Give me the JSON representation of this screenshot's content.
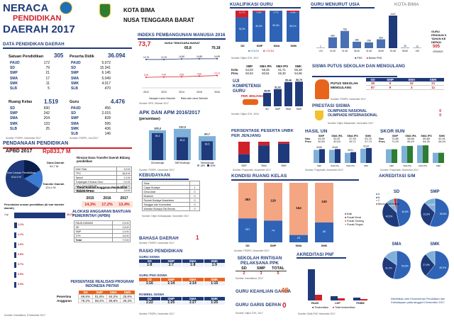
{
  "header": {
    "title1": "NERACA",
    "title2": "PENDIDIKAN",
    "title3": "DAERAH 2017",
    "region1": "KOTA BIMA",
    "region2": "NUSA TENGGARA BARAT"
  },
  "data_pendidikan": {
    "title": "DATA PENDIDIKAN DAERAH",
    "satuan": {
      "label": "Satuan Pendidikan",
      "total": "305",
      "rows": [
        [
          "PAUD",
          "172"
        ],
        [
          "SD",
          "79"
        ],
        [
          "SMP",
          "21"
        ],
        [
          "SMA",
          "17"
        ],
        [
          "SMK",
          "11"
        ],
        [
          "SLB",
          "5"
        ]
      ]
    },
    "peserta": {
      "label": "Peserta Didik",
      "total": "36.094",
      "rows": [
        [
          "PAUD",
          "5.072"
        ],
        [
          "SD",
          "15.341"
        ],
        [
          "SMP",
          "6.145"
        ],
        [
          "SMA",
          "5.049"
        ],
        [
          "SMK",
          "4.017"
        ],
        [
          "SLB",
          "470"
        ]
      ]
    },
    "kelas": {
      "label": "Ruang Kelas",
      "total": "1.519",
      "rows": [
        [
          "SD",
          "690"
        ],
        [
          "SMP",
          "242"
        ],
        [
          "SMA",
          "204"
        ],
        [
          "SMK",
          "133"
        ],
        [
          "SLB",
          "25"
        ]
      ]
    },
    "guru": {
      "label": "Guru",
      "total": "4.476",
      "rows": [
        [
          "PAUD",
          "456"
        ],
        [
          "SD",
          "2.015"
        ],
        [
          "SMP",
          "828"
        ],
        [
          "SMA",
          "595"
        ],
        [
          "SMK",
          "436"
        ],
        [
          "SLB",
          "146"
        ]
      ]
    },
    "src1": "Sumber: PDSPK, November 2017",
    "src2": "Sumber: PDSPK, Juni 2017"
  },
  "pendanaan": {
    "title": "PENDANAAN PENDIDIKAN",
    "apbd_label": "APBD 2017",
    "apbd_value": "Rp833,7 M",
    "pie": {
      "a_label": "Dana Daerah",
      "a_value": "94,7 M",
      "b_label": "Non Urusan Pendidikan",
      "b_value": "614,9 M",
      "c_label": "Transfer Daerah",
      "c_value": "124,1 M"
    },
    "rincian_title": "Rincian Dana Transfer Daerah Bidang pendidikan",
    "rincian": [
      [
        "DAK Fisik",
        "3,9 M"
      ],
      [
        "TPG",
        "46,5 M"
      ],
      [
        "Tamsil",
        "1,3 M"
      ],
      [
        "Tunjangan Khusus Guru",
        "0,0 M"
      ],
      [
        "DAU (Gaji CPNSD)",
        "69,6 M"
      ],
      [
        "BOP PAUD",
        "2,6 M"
      ]
    ],
    "peruntukan_title": "Peruntukan urusan pendidikan (di luar transfer daerah)",
    "peruntukan": [
      [
        "Gaji",
        "45.2%"
      ],
      [
        "",
        "2.2%"
      ],
      [
        "",
        "1.1%"
      ],
      [
        "",
        "1.0%"
      ],
      [
        "",
        "0.8%"
      ],
      [
        "",
        "0.7%"
      ],
      [
        "",
        "0.5%"
      ],
      [
        "",
        "0.3%"
      ]
    ],
    "tren_title": "Trend Alokasi Anggaran Pendidikan dalam APBD",
    "tren_years": [
      "2015",
      "2016",
      "2017"
    ],
    "tren_values": [
      "14,3%",
      "17,2%",
      "13,4%"
    ],
    "apbn_title": "ALOKASI ANGGARAN BANTUAN PEMERINTAH (APBN)",
    "apbn": [
      [
        "PAUD-DIKMAS",
        "0,5 M"
      ],
      [
        "SD",
        "2,8 M"
      ],
      [
        "SMP",
        "1,5 M"
      ],
      [
        "GTK",
        "3,6 M"
      ],
      [
        "Total",
        "7,9 M"
      ]
    ],
    "realisasi_title": "PERSENTASE REALISASI PROGRAM INDONESIA PINTAR",
    "realisasi_head": [
      "SD",
      "SMP",
      "SMA",
      "SMK"
    ],
    "realisasi": [
      [
        "Penerima",
        "69,6%",
        "51,8%",
        "64,2%",
        "25,6%"
      ],
      [
        "Anggaran",
        "79,2%",
        "58,4%",
        "68,8%",
        "30,3%"
      ]
    ],
    "src": "Sumber: Kemdikbud, 5 Desember 2017"
  },
  "ipm": {
    "title": "INDEKS PEMBANGUNAN MANUSIA 2016",
    "value": "73,7",
    "prov_label": "NUSA TENGGARA BARAT",
    "prov": "65,8",
    "nat": "70,18",
    "years": [
      "2012",
      "2013",
      "2014",
      "2015",
      "2016"
    ],
    "top": [
      14.76,
      14.76,
      14.86,
      14.88,
      14.89
    ],
    "bottom": [
      9.28,
      9.46,
      9.58,
      9.86,
      10.13
    ],
    "top_labels": [
      "14,76",
      "14,76",
      "14,86",
      "14,88",
      "14,89"
    ],
    "bot_labels": [
      "9,28",
      "9,46",
      "9,58",
      "9,86",
      "10,13"
    ],
    "legend": [
      "Harapan Lama Sekolah",
      "Rata-rata Lama Sekolah"
    ],
    "src": "Sumber: BPS, Oktober 2017"
  },
  "apk": {
    "title": "APK DAN APM 2016/2017",
    "subtitle": "(persentase)",
    "chart_data": {
      "type": "bar",
      "categories": [
        "SD/sederajat",
        "SMP/sederajat",
        "SM/sederajat"
      ],
      "series": [
        {
          "name": "APK",
          "values": [
            105.3,
            110.3,
            84.7
          ]
        },
        {
          "name": "APM",
          "values": [
            95.3,
            80.6,
            66.5
          ]
        }
      ],
      "ylim": [
        0,
        120
      ]
    },
    "labels": [
      "105,3",
      "110,3",
      "84,7",
      "95,3",
      "80,6",
      "66,5"
    ],
    "legend": [
      "APK",
      "APM"
    ],
    "src": "Sumber: PDSPK, November 2017"
  },
  "kebudayaan": {
    "title": "KEBUDAYAAN",
    "rows": [
      [
        "Situs",
        ""
      ],
      [
        "Cagar Budaya",
        "1"
      ],
      [
        "Desa Adat",
        "0"
      ],
      [
        "Museum",
        "0"
      ],
      [
        "Rumah Budaya Nusantara",
        "0"
      ],
      [
        "Sanggar dan Komunitas",
        "0"
      ],
      [
        "Warisan Budaya Tak Benda",
        "0"
      ]
    ],
    "src": "Sumber: Ditjen Kebudayaan, November 2017"
  },
  "bahasa": {
    "title": "BAHASA DAERAH",
    "value": "1",
    "src": "Sumber: PDSPK, November 2017"
  },
  "rasio": {
    "title": "RASIO PENDIDIKAN",
    "a_title": "GURU:SISWA",
    "b_title": "GURU PNS:SISWA",
    "c_title": "ROMBEL:SISWA",
    "head": [
      "SD",
      "SMP",
      "SMA",
      "SMK"
    ],
    "a": [
      "1:8",
      "1:7",
      "1:8",
      "1:9"
    ],
    "b": [
      "1:16",
      "1:14",
      "1:14",
      "1:15"
    ],
    "c": [
      "1:22",
      "1:25",
      "1:27",
      "1:25"
    ],
    "src": "Sumber: PDSPK, November 2017"
  },
  "kualifikasi": {
    "title": "KUALIFIKASI GURU",
    "cats": [
      "SD",
      "SMP",
      "SMA",
      "SMK"
    ],
    "s1": [
      78.3,
      96.0,
      99.3,
      95.1
    ],
    "non": [
      21.7,
      4.0,
      0.7,
      4.9
    ],
    "labels_s1": [
      "78,3%",
      "96,0%",
      "99,3%",
      "95,1%"
    ],
    "labels_non": [
      "21,7%",
      "4,0%",
      "0,7%",
      "4,9%"
    ],
    "legend": [
      "≥S1/D4",
      "<S1/D4"
    ],
    "src": "Sumber: Ditjen GTK, 2017"
  },
  "un": {
    "title": "NILAI UN",
    "head": [
      "SMP",
      "SMA IPA",
      "SMA IPS",
      "SMK"
    ],
    "rows": [
      [
        "Kota",
        "54,03",
        "58,25",
        "61,71",
        "55,28"
      ],
      [
        "Prov.",
        "50,63",
        "50,81",
        "56,30",
        "54,96"
      ],
      [
        "Nas.",
        "",
        "",
        "",
        ""
      ]
    ],
    "src": "Sumber: Puspendik, 2017"
  },
  "ukg": {
    "title": "UJI KOMPETENSI GURU",
    "subtitle": "PER JENJANG",
    "cats": [
      "SD",
      "SMP",
      "SMA",
      "SMK"
    ],
    "values": [
      48.59,
      51.02,
      55.49,
      55.79
    ],
    "labels": [
      "48,59",
      "51,02",
      "55,49",
      "55,79"
    ],
    "src": "Sumber: Ditjen GTK, 2016"
  },
  "usia": {
    "title": "GURU MENURUT USIA",
    "region": "KOTA BIMA",
    "cats": [
      "<24",
      "24-30",
      "31-35",
      "36-40",
      "41-45",
      "46-50",
      "51-55",
      "56-60",
      ">60"
    ],
    "values": [
      1,
      484,
      765,
      286,
      258,
      394,
      1447,
      20,
      12
    ],
    "labels": [
      "1",
      "484",
      "765",
      "286",
      "258",
      "394",
      "1447",
      "20",
      "12"
    ],
    "legend": [
      "PNS",
      "Bukan PNS"
    ],
    "pensiun_lbl": "GURU PENSIUN 5 TAHUN KE DEPAN",
    "pensiun": "505",
    "pensiun_unit": "ORANG"
  },
  "putus": {
    "title": "SISWA PUTUS SEKOLAH DAN MENGULANG",
    "head": [
      "SD",
      "SMP",
      "SMA",
      "SMK"
    ],
    "rows": [
      [
        "PUTUS SEKOLAH",
        "39",
        "9",
        "32",
        "21"
      ],
      [
        "MENGULANG",
        "87",
        "9",
        "3",
        "11"
      ]
    ],
    "src": "Sumber: PDSPK, November 2017"
  },
  "prestasi": {
    "title": "PRESTASI SISWA",
    "rows": [
      [
        "OLIMPIADE NASIONAL",
        "0"
      ],
      [
        "OLIMPIADE INTERNASIONAL",
        "0"
      ]
    ],
    "src": "Sumber: Ditjen Dikdasmen, November 2017"
  },
  "unbk": {
    "title": "PERSENTASE PESERTA UNBK PER JENJANG",
    "cats": [
      "SMP",
      "SMA",
      "SMK"
    ],
    "unbk": [
      41.2,
      82.8,
      90.8
    ],
    "legend": [
      "UNBK",
      "UNKP"
    ],
    "src": "Sumber: Puspendik, November 2017"
  },
  "hasil_un": {
    "title": "HASIL UN",
    "head": [
      "SMP",
      "SMA IPA",
      "SMA IPS",
      "SMK"
    ],
    "rows": [
      [
        "Nas.",
        "44,30",
        "52,87",
        "47,93",
        "53,75"
      ],
      [
        "Prov.",
        "40,59",
        "40,03",
        "39,71",
        "47,73"
      ]
    ],
    "values": [
      40.59,
      40.68,
      35.91,
      42.34
    ],
    "labels": [
      "40,59",
      "40,68",
      "35,91",
      "42,34"
    ],
    "legend": [
      "2016",
      "2017"
    ],
    "src": "Sumber: Puspendik, November 2017"
  },
  "skor_iiun": {
    "title": "SKOR IIUN",
    "head": [
      "SMP",
      "SMA IPA",
      "SMA IPS",
      "SMK"
    ],
    "rows": [
      [
        "Nas.",
        "70,85",
        "66,66",
        "65,88",
        "62,91"
      ],
      [
        "Prov.",
        "71,09",
        "65,29",
        "64,25",
        "64,09"
      ]
    ],
    "values": [
      64.2,
      70.1,
      71.1,
      58.0
    ],
    "src": "Sumber: Puspendik, November 2017"
  },
  "kondisi": {
    "title": "KONDISI RUANG KELAS",
    "cats": [
      "SD",
      "SMP",
      "SMA",
      "SMK"
    ],
    "baik": [
      257,
      74,
      23,
      50
    ],
    "rusak": [
      383,
      129,
      164,
      100
    ],
    "labels_b": [
      "257",
      "74",
      "23",
      "50"
    ],
    "labels_r": [
      "383",
      "129",
      "164",
      "100"
    ],
    "legend": [
      "Baik",
      "Rusak Berat",
      "Rusak Sedang",
      "Rusak Ringan"
    ],
    "src": "Sumber: PDSPK, November 2017"
  },
  "ppk": {
    "title": "SEKOLAH RINTISAN PELAKSANA PPK",
    "head": [
      "SD",
      "SMP",
      "TOTAL"
    ],
    "values": [
      "2",
      "3",
      "5"
    ],
    "src": "Sumber: Kemdikbud, 2017"
  },
  "keahlian": {
    "title": "GURU KEAHLIAN GANDA",
    "value": "49"
  },
  "garis": {
    "title": "GURU GARIS DEPAN",
    "value": "0",
    "src": "Sumber: Ditjen GTK, 2017"
  },
  "pnf": {
    "title": "AKREDITASI PNF",
    "cats": [
      "PAUD",
      "LKP",
      "PKBM"
    ],
    "legend": [
      "Terakreditasi",
      "Tidak terakreditasi"
    ],
    "src": "Sumber: BAN-PNF, November 2017"
  },
  "akreditasi": {
    "title": "AKREDITASI S/M",
    "pies": [
      {
        "name": "SD",
        "slices": [
          46.8,
          40.5,
          9.5,
          3.2
        ],
        "labels": [
          "46,8%",
          "40,5%",
          "9,5%"
        ]
      },
      {
        "name": "SMP",
        "slices": [
          55.8,
          31.6,
          12.6
        ],
        "labels": [
          "55,8%",
          "31,6%",
          "12,6%"
        ]
      },
      {
        "name": "SMA",
        "slices": [
          53.5,
          31.2,
          15.3
        ],
        "labels": [
          "53,5%",
          "31,2%"
        ]
      },
      {
        "name": "SMK",
        "slices": [
          60.9,
          27.9,
          11.2
        ],
        "labels": [
          "60,9%",
          "27,9%"
        ]
      }
    ],
    "legend": [
      "A",
      "B",
      "C",
      "Belum Terakreditasi"
    ],
    "footer": "Diterbitkan oleh Kementerian Pendidikan dan Kebudayaan pada tanggal 5 Desember 2017"
  },
  "colors": {
    "navy": "#1f3a7a",
    "blue": "#2e63b6",
    "red": "#d0202a",
    "orange": "#e8641c",
    "green": "#2e7d32",
    "sky": "#7fb0d8"
  }
}
